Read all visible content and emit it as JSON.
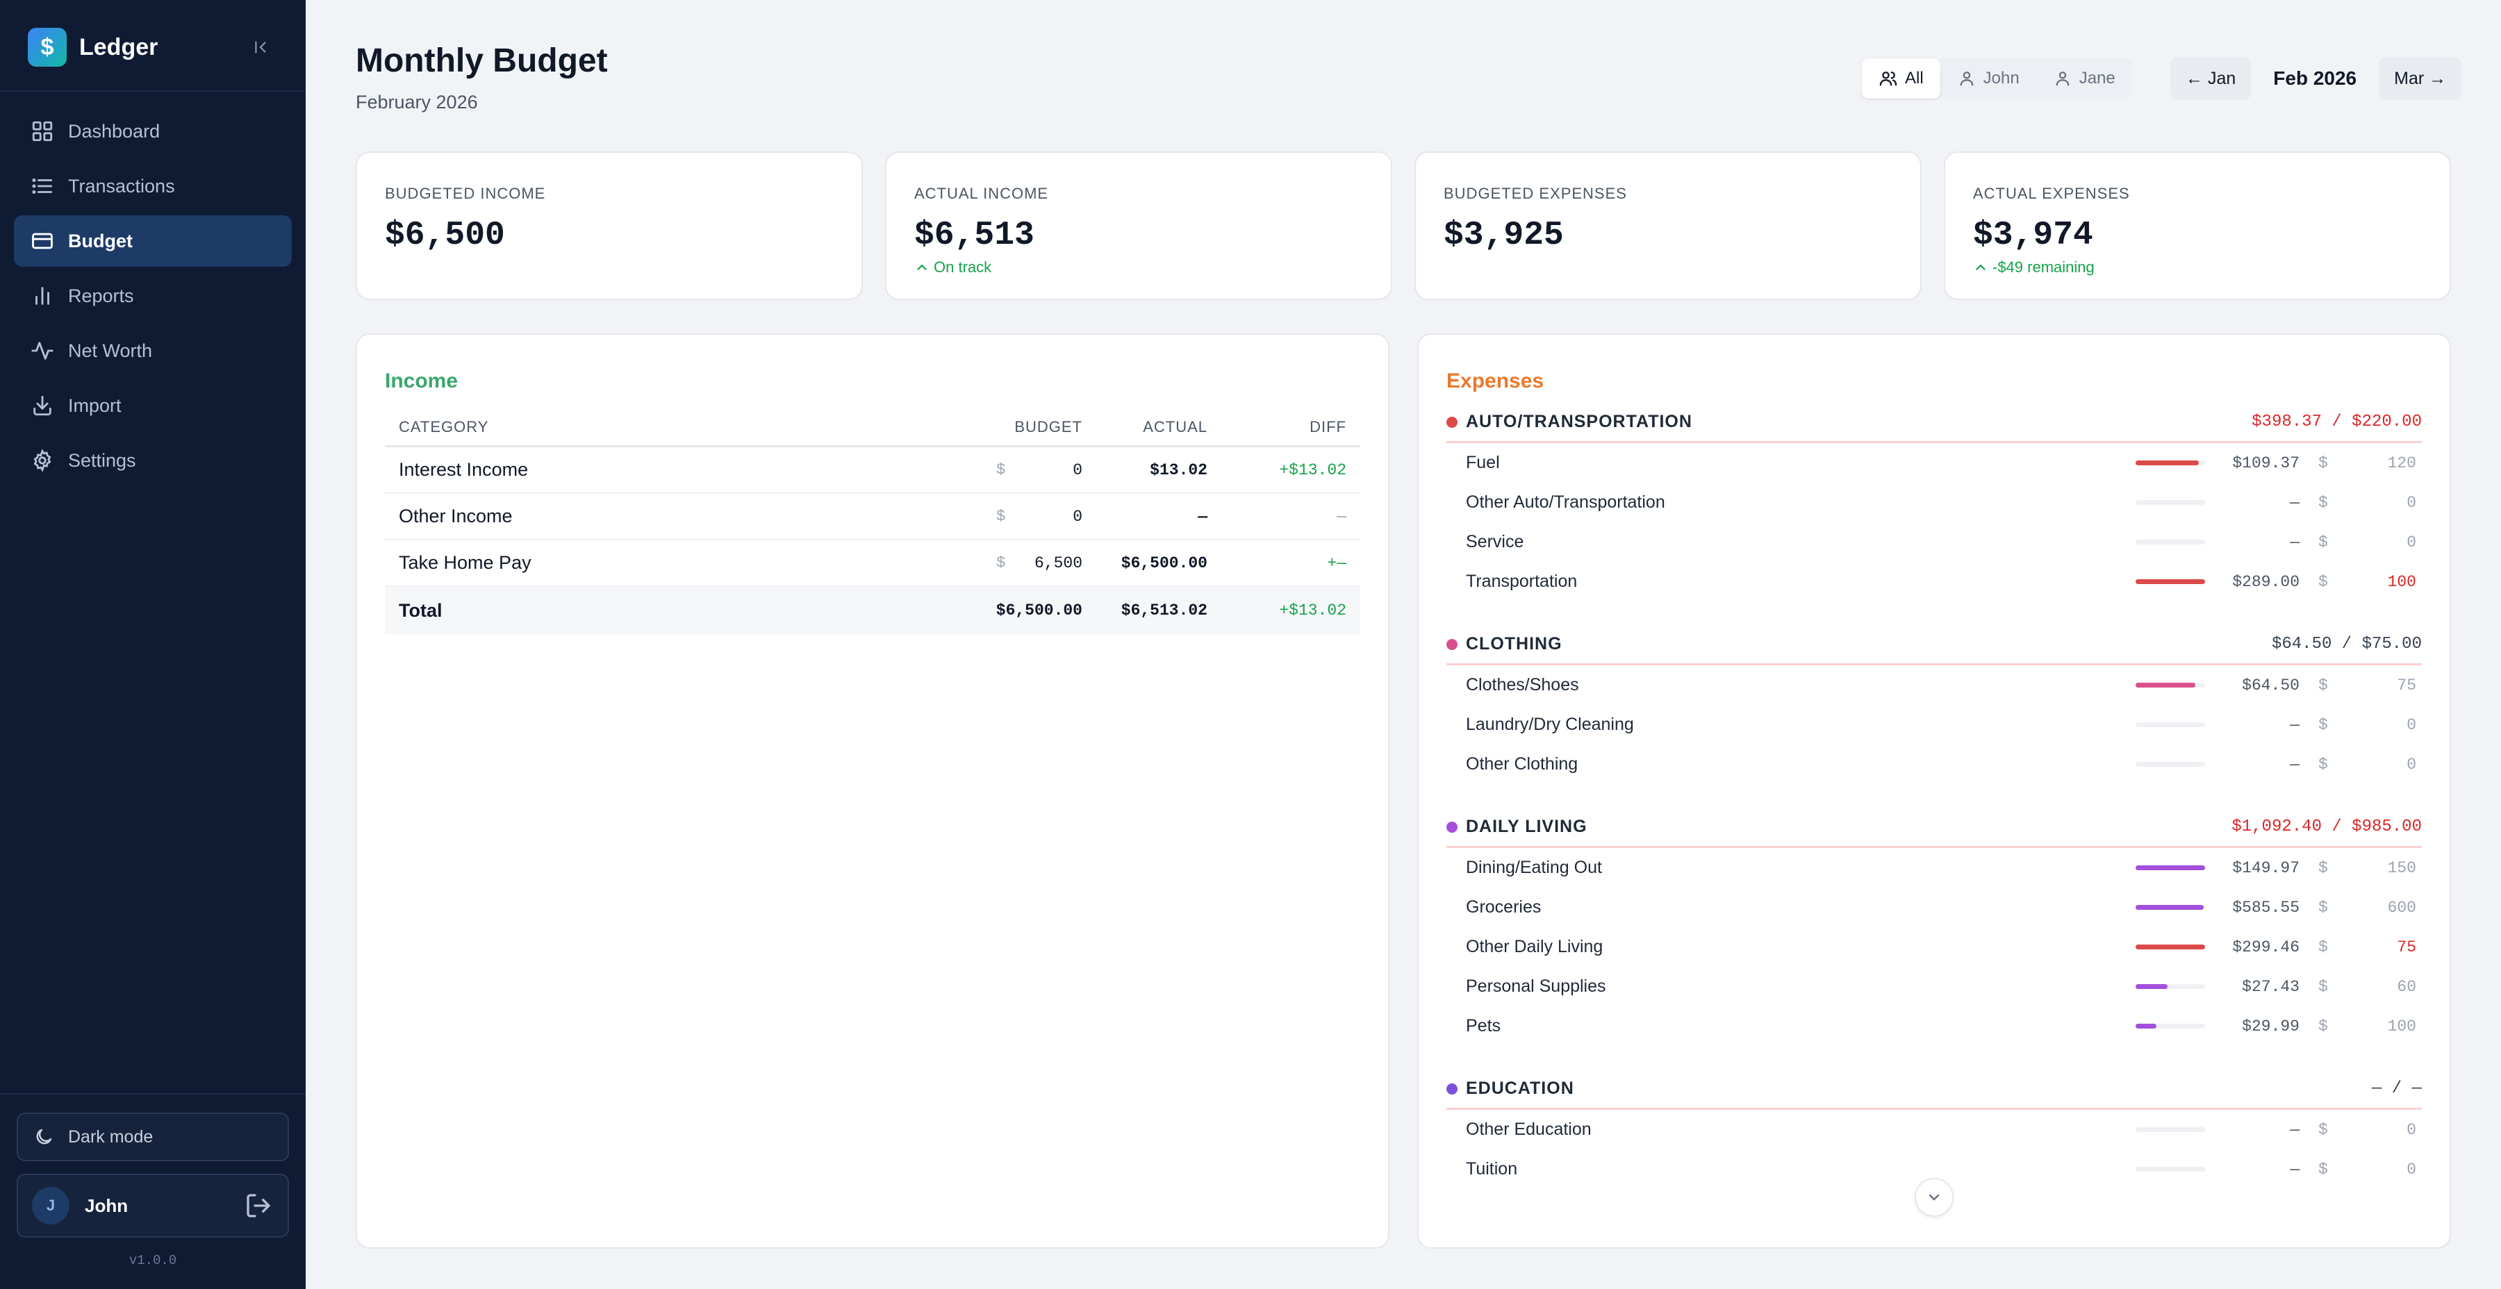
{
  "app": {
    "name": "Ledger",
    "logo_glyph": "$",
    "version": "v1.0.0"
  },
  "sidebar": {
    "items": [
      {
        "label": "Dashboard",
        "icon": "grid-icon"
      },
      {
        "label": "Transactions",
        "icon": "list-icon"
      },
      {
        "label": "Budget",
        "icon": "wallet-icon",
        "active": true
      },
      {
        "label": "Reports",
        "icon": "bar-chart-icon"
      },
      {
        "label": "Net Worth",
        "icon": "activity-icon"
      },
      {
        "label": "Import",
        "icon": "download-icon"
      },
      {
        "label": "Settings",
        "icon": "gear-icon"
      }
    ],
    "dark_mode_label": "Dark mode",
    "user": {
      "initial": "J",
      "name": "John"
    }
  },
  "header": {
    "title": "Monthly Budget",
    "subtitle": "February 2026",
    "filters": [
      {
        "label": "All",
        "active": true
      },
      {
        "label": "John",
        "active": false
      },
      {
        "label": "Jane",
        "active": false
      }
    ],
    "prev_month": "← Jan",
    "current_month": "Feb 2026",
    "next_month": "Mar →"
  },
  "stats": [
    {
      "label": "BUDGETED INCOME",
      "value": "$6,500",
      "note": ""
    },
    {
      "label": "ACTUAL INCOME",
      "value": "$6,513",
      "note": "On track"
    },
    {
      "label": "BUDGETED EXPENSES",
      "value": "$3,925",
      "note": ""
    },
    {
      "label": "ACTUAL EXPENSES",
      "value": "$3,974",
      "note": "-$49 remaining"
    }
  ],
  "income": {
    "title": "Income",
    "columns": [
      "CATEGORY",
      "BUDGET",
      "ACTUAL",
      "DIFF"
    ],
    "currency": "$",
    "rows": [
      {
        "category": "Interest Income",
        "budget": "0",
        "actual": "$13.02",
        "diff": "+$13.02"
      },
      {
        "category": "Other Income",
        "budget": "0",
        "actual": "—",
        "diff": "—"
      },
      {
        "category": "Take Home Pay",
        "budget": "6,500",
        "actual": "$6,500.00",
        "diff": "+—"
      }
    ],
    "total": {
      "label": "Total",
      "budget": "$6,500.00",
      "actual": "$6,513.02",
      "diff": "+$13.02"
    }
  },
  "expenses": {
    "title": "Expenses",
    "currency": "$",
    "groups": [
      {
        "name": "AUTO/TRANSPORTATION",
        "color": "#dc4a4a",
        "total": "$398.37 / $220.00",
        "over": true,
        "items": [
          {
            "name": "Fuel",
            "actual": "$109.37",
            "budget": "120",
            "fill": 0.91,
            "bar_color": "#dc4a4a",
            "over": false
          },
          {
            "name": "Other Auto/Transportation",
            "actual": "—",
            "budget": "0",
            "fill": 0,
            "bar_color": "#dc4a4a",
            "over": false
          },
          {
            "name": "Service",
            "actual": "—",
            "budget": "0",
            "fill": 0,
            "bar_color": "#dc4a4a",
            "over": false
          },
          {
            "name": "Transportation",
            "actual": "$289.00",
            "budget": "100",
            "fill": 1,
            "bar_color": "#dc4a4a",
            "over": true
          }
        ]
      },
      {
        "name": "CLOTHING",
        "color": "#db4f8c",
        "total": "$64.50 / $75.00",
        "over": false,
        "items": [
          {
            "name": "Clothes/Shoes",
            "actual": "$64.50",
            "budget": "75",
            "fill": 0.86,
            "bar_color": "#db4f8c",
            "over": false
          },
          {
            "name": "Laundry/Dry Cleaning",
            "actual": "—",
            "budget": "0",
            "fill": 0,
            "bar_color": "#db4f8c",
            "over": false
          },
          {
            "name": "Other Clothing",
            "actual": "—",
            "budget": "0",
            "fill": 0,
            "bar_color": "#db4f8c",
            "over": false
          }
        ]
      },
      {
        "name": "DAILY LIVING",
        "color": "#a34fdc",
        "total": "$1,092.40 / $985.00",
        "over": true,
        "items": [
          {
            "name": "Dining/Eating Out",
            "actual": "$149.97",
            "budget": "150",
            "fill": 1,
            "bar_color": "#a34fdc",
            "over": false
          },
          {
            "name": "Groceries",
            "actual": "$585.55",
            "budget": "600",
            "fill": 0.98,
            "bar_color": "#a34fdc",
            "over": false
          },
          {
            "name": "Other Daily Living",
            "actual": "$299.46",
            "budget": "75",
            "fill": 1,
            "bar_color": "#dc4a4a",
            "over": true
          },
          {
            "name": "Personal Supplies",
            "actual": "$27.43",
            "budget": "60",
            "fill": 0.46,
            "bar_color": "#a34fdc",
            "over": false
          },
          {
            "name": "Pets",
            "actual": "$29.99",
            "budget": "100",
            "fill": 0.3,
            "bar_color": "#a34fdc",
            "over": false
          }
        ]
      },
      {
        "name": "EDUCATION",
        "color": "#7c4fdc",
        "total": "— / —",
        "over": false,
        "items": [
          {
            "name": "Other Education",
            "actual": "—",
            "budget": "0",
            "fill": 0,
            "bar_color": "#7c4fdc",
            "over": false
          },
          {
            "name": "Tuition",
            "actual": "—",
            "budget": "0",
            "fill": 0,
            "bar_color": "#7c4fdc",
            "over": false
          }
        ]
      }
    ]
  },
  "colors": {
    "sidebar_bg": "#0f1b33",
    "income_title": "#3aa76d",
    "expenses_title": "#ea7a2c",
    "positive": "#16a34a",
    "over_budget": "#dc2626"
  }
}
